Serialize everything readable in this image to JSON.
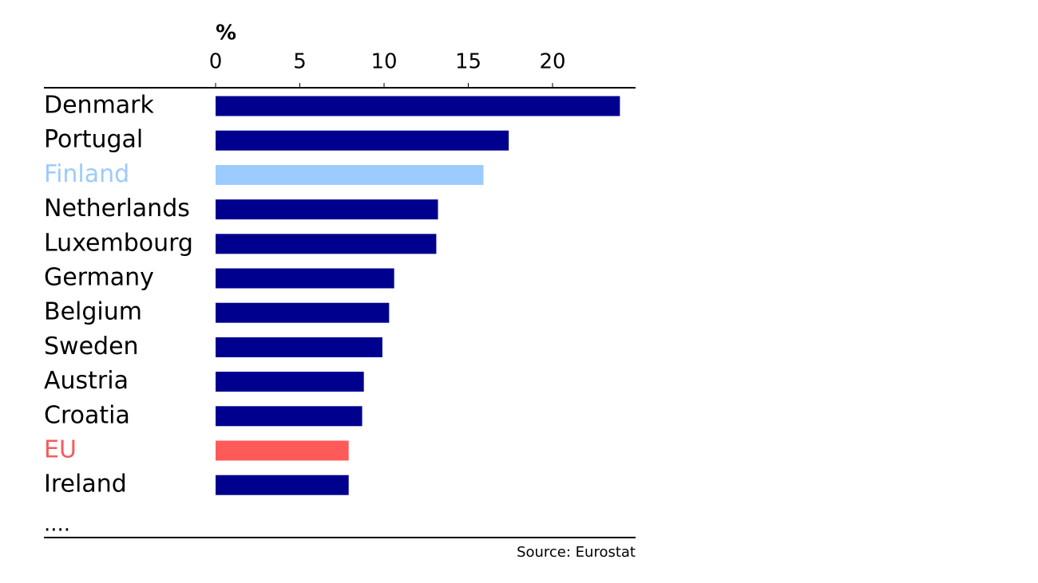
{
  "chart_data": {
    "type": "bar",
    "orientation": "horizontal",
    "x_label": "%",
    "categories": [
      "Denmark",
      "Portugal",
      "Finland",
      "Netherlands",
      "Luxembourg",
      "Germany",
      "Belgium",
      "Sweden",
      "Austria",
      "Croatia",
      "EU",
      "Ireland"
    ],
    "values": [
      24.0,
      17.4,
      15.9,
      13.2,
      13.1,
      10.6,
      10.3,
      9.9,
      8.8,
      8.7,
      7.9,
      7.9
    ],
    "colors": [
      "#00008f",
      "#00008f",
      "#9ccbff",
      "#00008f",
      "#00008f",
      "#00008f",
      "#00008f",
      "#00008f",
      "#00008f",
      "#00008f",
      "#ff5a5a",
      "#00008f"
    ],
    "label_colors": [
      "#000000",
      "#000000",
      "#9ccbff",
      "#000000",
      "#000000",
      "#000000",
      "#000000",
      "#000000",
      "#000000",
      "#000000",
      "#f45c5c",
      "#000000"
    ],
    "xlim": [
      0,
      25
    ],
    "xticks": [
      0,
      5,
      10,
      15,
      20
    ],
    "continuation": "....",
    "source": "Source: Eurostat"
  }
}
